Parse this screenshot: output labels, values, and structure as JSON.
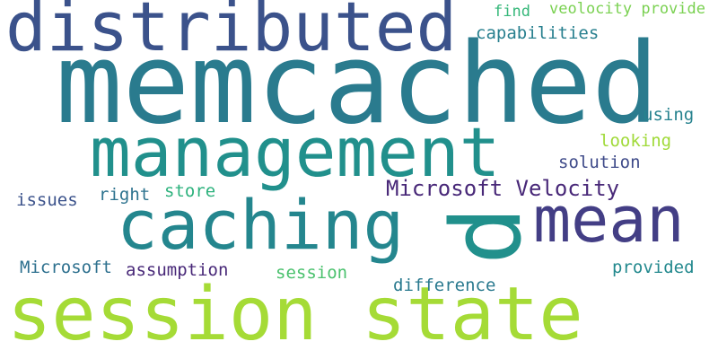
{
  "words": {
    "memcached": "memcached",
    "distributed": "distributed",
    "management": "management",
    "caching": "caching",
    "mean": "mean",
    "session_state": "session state",
    "p": "p",
    "microsoft_velocity": "Microsoft Velocity",
    "capabilities": "capabilities",
    "find": "find",
    "veolocity_provide": "veolocity provide",
    "using": "using",
    "looking": "looking",
    "solution": "solution",
    "issues": "issues",
    "right": "right",
    "store": "store",
    "microsoft": "Microsoft",
    "assumption": "assumption",
    "session": "session",
    "provided": "provided",
    "difference": "difference"
  },
  "palette": {
    "dark_purple": "#482878",
    "indigo": "#3b528b",
    "teal": "#21908c",
    "green": "#35b779",
    "lime": "#a5db36"
  }
}
